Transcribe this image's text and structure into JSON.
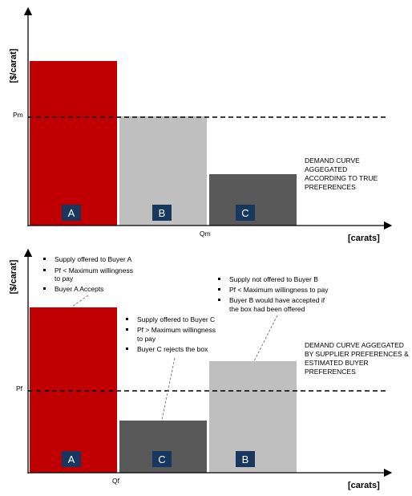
{
  "colors": {
    "red": "#c00000",
    "light_gray": "#bfbfbf",
    "dark_gray": "#595959",
    "label_box": "#17375e"
  },
  "top": {
    "y_axis_label": "[$/carat]",
    "x_axis_label": "[carats]",
    "price_label": "Pm",
    "quantity_label": "Qm",
    "bars": [
      "A",
      "B",
      "C"
    ],
    "note": [
      "DEMAND CURVE",
      "AGGEGATED",
      "ACCORDING TO TRUE",
      "PREFERENCES"
    ]
  },
  "bottom": {
    "y_axis_label": "[$/carat]",
    "x_axis_label": "[carats]",
    "price_label": "Pf",
    "quantity_label": "Qf",
    "bars": [
      "A",
      "C",
      "B"
    ],
    "callout_a": {
      "b1": "Supply offered to Buyer A",
      "b2_l1": "Pf < Maximum willingness",
      "b2_l2": "to pay",
      "b3": "Buyer A Accepts"
    },
    "callout_c": {
      "b1": "Supply offered to Buyer C",
      "b2_l1": "Pf > Maximum willingness",
      "b2_l2": "to pay",
      "b3": "Buyer C rejects the box"
    },
    "callout_b": {
      "b1": "Supply not offered to Buyer B",
      "b2": "Pf < Maximum willingness to pay",
      "b3_l1": "Buyer B would have accepted if",
      "b3_l2": "the box had been offered"
    },
    "note": [
      "DEMAND CURVE AGGEGATED",
      "BY SUPPLIER  PREFERENCES &",
      "ESTIMATED BUYER",
      "PREFERENCES"
    ]
  }
}
